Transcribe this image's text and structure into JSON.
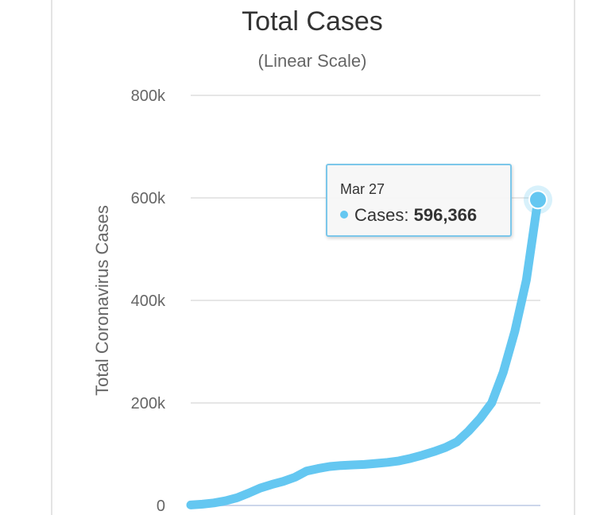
{
  "chart_data": {
    "type": "line",
    "title": "Total Cases",
    "subtitle": "(Linear Scale)",
    "xlabel": "",
    "ylabel": "Total Coronavirus Cases",
    "ylim": [
      0,
      800000
    ],
    "yticks": [
      0,
      200000,
      400000,
      600000,
      800000
    ],
    "ytick_labels": [
      "0",
      "200k",
      "400k",
      "600k",
      "800k"
    ],
    "grid": true,
    "legend": "none",
    "series": [
      {
        "color": "#64c7f1",
        "values": [
          1000,
          2500,
          5000,
          9000,
          15000,
          24000,
          34000,
          41000,
          47000,
          55000,
          67000,
          72000,
          76000,
          78000,
          79000,
          80000,
          82000,
          84000,
          87000,
          92000,
          98000,
          105000,
          113000,
          124000,
          145000,
          170000,
          200000,
          260000,
          340000,
          440000,
          596366
        ]
      }
    ],
    "tooltip": {
      "date": "Mar 27",
      "label": "Cases:",
      "value": "596,366"
    }
  },
  "colors": {
    "line": "#64c7f1",
    "grid": "#e6e6e6",
    "tooltip_border": "#7cc7ea"
  }
}
